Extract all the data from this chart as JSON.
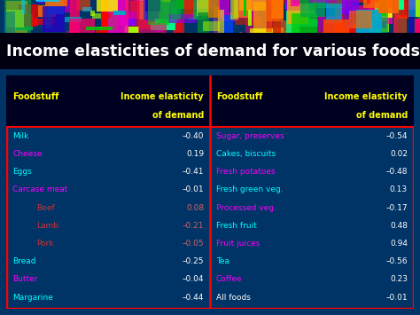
{
  "title": "Income elasticities of demand for various foodstuffs",
  "title_color": "#ffffff",
  "title_fontsize": 12.5,
  "bg_color": "#003366",
  "header_bg": "#000033",
  "left_table": {
    "header_food": "Foodstuff",
    "header_ied_1": "Income elasticity",
    "header_ied_2": "of demand",
    "rows": [
      {
        "food": "Milk",
        "indent": false,
        "food_color": "#00ffff",
        "value": "–0.40",
        "value_color": "#ffffff"
      },
      {
        "food": "Cheese",
        "indent": false,
        "food_color": "#ff00ff",
        "value": "0.19",
        "value_color": "#ffffff"
      },
      {
        "food": "Eggs",
        "indent": false,
        "food_color": "#00ffff",
        "value": "–0.41",
        "value_color": "#ffffff"
      },
      {
        "food": "Carcase meat",
        "indent": false,
        "food_color": "#ff00ff",
        "value": "–0.01",
        "value_color": "#ffffff"
      },
      {
        "food": "Beef",
        "indent": true,
        "food_color": "#cc3333",
        "value": "0.08",
        "value_color": "#cc6666"
      },
      {
        "food": "Lamb",
        "indent": true,
        "food_color": "#cc3333",
        "value": "–0.21",
        "value_color": "#cc6666"
      },
      {
        "food": "Pork",
        "indent": true,
        "food_color": "#cc3333",
        "value": "–0.05",
        "value_color": "#cc6666"
      },
      {
        "food": "Bread",
        "indent": false,
        "food_color": "#00ffff",
        "value": "–0.25",
        "value_color": "#ffffff"
      },
      {
        "food": "Butter",
        "indent": false,
        "food_color": "#ff00ff",
        "value": "–0.04",
        "value_color": "#ffffff"
      },
      {
        "food": "Margarine",
        "indent": false,
        "food_color": "#00ffff",
        "value": "–0.44",
        "value_color": "#ffffff"
      }
    ]
  },
  "right_table": {
    "header_food": "Foodstuff",
    "header_ied_1": "Income elasticity",
    "header_ied_2": "of demand",
    "rows": [
      {
        "food": "Sugar, preserves",
        "food_color": "#ff00ff",
        "value": "–0.54",
        "value_color": "#ffffff"
      },
      {
        "food": "Cakes, biscuits",
        "food_color": "#00ffff",
        "value": "0.02",
        "value_color": "#ffffff"
      },
      {
        "food": "Fresh potatoes",
        "food_color": "#ff00ff",
        "value": "–0.48",
        "value_color": "#ffffff"
      },
      {
        "food": "Fresh green veg.",
        "food_color": "#00ffff",
        "value": "0.13",
        "value_color": "#ffffff"
      },
      {
        "food": "Processed veg.",
        "food_color": "#ff00ff",
        "value": "–0.17",
        "value_color": "#ffffff"
      },
      {
        "food": "Fresh fruit",
        "food_color": "#00ffff",
        "value": "0.48",
        "value_color": "#ffffff"
      },
      {
        "food": "Fruit juices",
        "food_color": "#ff00ff",
        "value": "0.94",
        "value_color": "#ffffff"
      },
      {
        "food": "Tea",
        "food_color": "#00ffff",
        "value": "–0.56",
        "value_color": "#ffffff"
      },
      {
        "food": "Coffee",
        "food_color": "#ff00ff",
        "value": "0.23",
        "value_color": "#ffffff"
      },
      {
        "food": "All foods",
        "food_color": "#ffffff",
        "value": "–0.01",
        "value_color": "#ffffff"
      }
    ]
  }
}
